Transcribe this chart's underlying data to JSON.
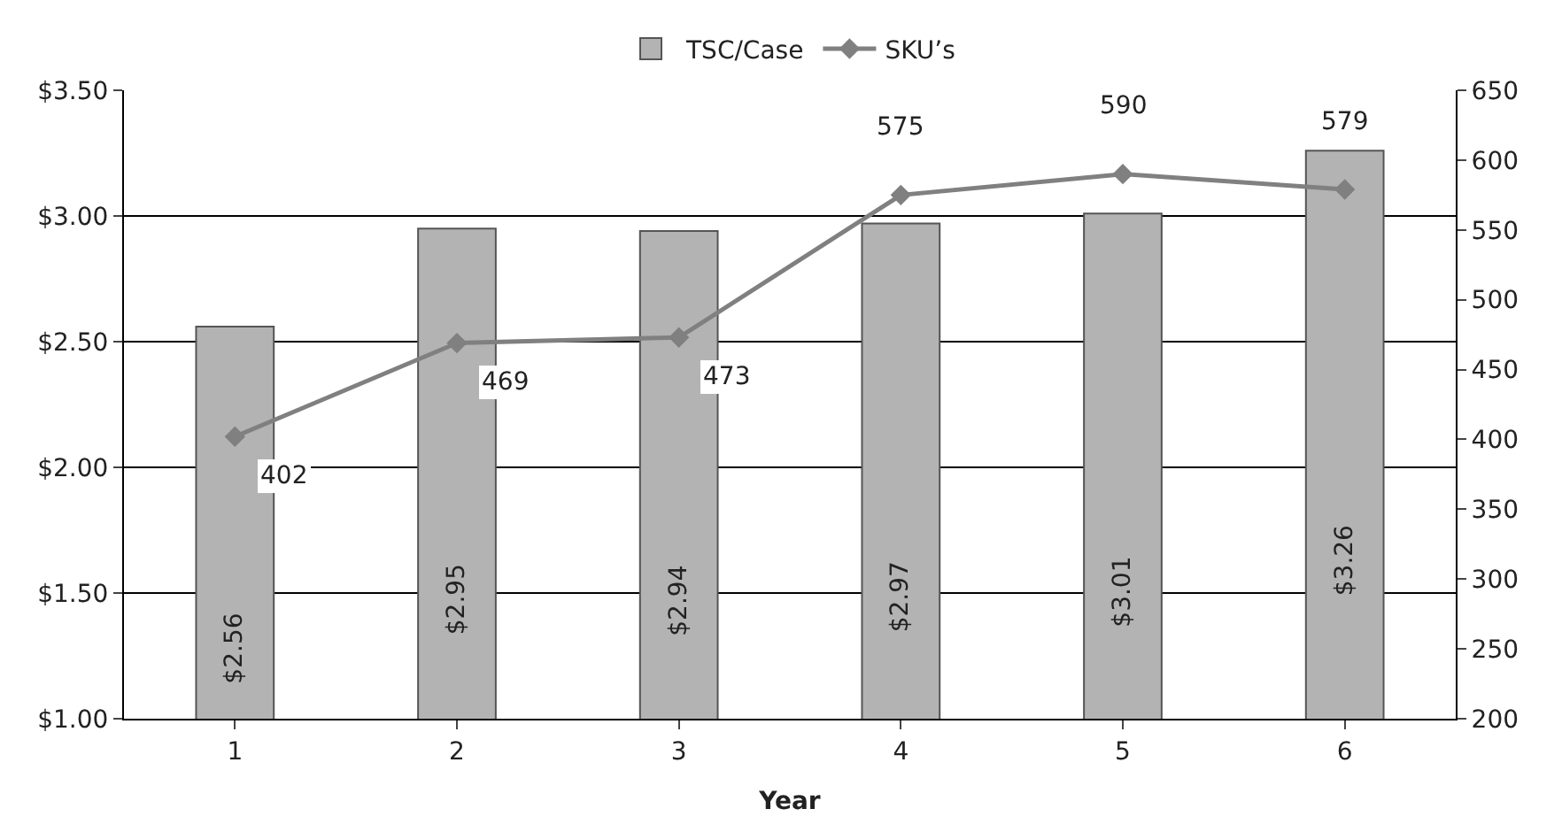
{
  "chart_data": {
    "type": "bar",
    "xlabel": "Year",
    "categories": [
      "1",
      "2",
      "3",
      "4",
      "5",
      "6"
    ],
    "series": [
      {
        "name": "TSC/Case",
        "color": "#b3b3b3",
        "values": [
          2.56,
          2.95,
          2.94,
          2.97,
          3.01,
          3.26
        ],
        "value_labels": [
          "$2.56",
          "$2.95",
          "$2.94",
          "$2.97",
          "$3.01",
          "$3.26"
        ]
      },
      {
        "name": "SKU’s",
        "type": "line",
        "axis": "y2",
        "color": "#808080",
        "values": [
          402,
          469,
          473,
          575,
          590,
          579
        ],
        "value_labels": [
          "402",
          "469",
          "473",
          "575",
          "590",
          "579"
        ]
      }
    ],
    "ylim": [
      1.0,
      3.5
    ],
    "yticks": [
      {
        "value": 1.0,
        "label": "$1.00"
      },
      {
        "value": 1.5,
        "label": "$1.50"
      },
      {
        "value": 2.0,
        "label": "$2.00"
      },
      {
        "value": 2.5,
        "label": "$2.50"
      },
      {
        "value": 3.0,
        "label": "$3.00"
      },
      {
        "value": 3.5,
        "label": "$3.50"
      }
    ],
    "y2lim": [
      200,
      650
    ],
    "y2ticks": [
      200,
      250,
      300,
      350,
      400,
      450,
      500,
      550,
      600,
      650
    ],
    "grid": "y",
    "legend": "top",
    "marker": "diamond",
    "line_style": "solid"
  }
}
